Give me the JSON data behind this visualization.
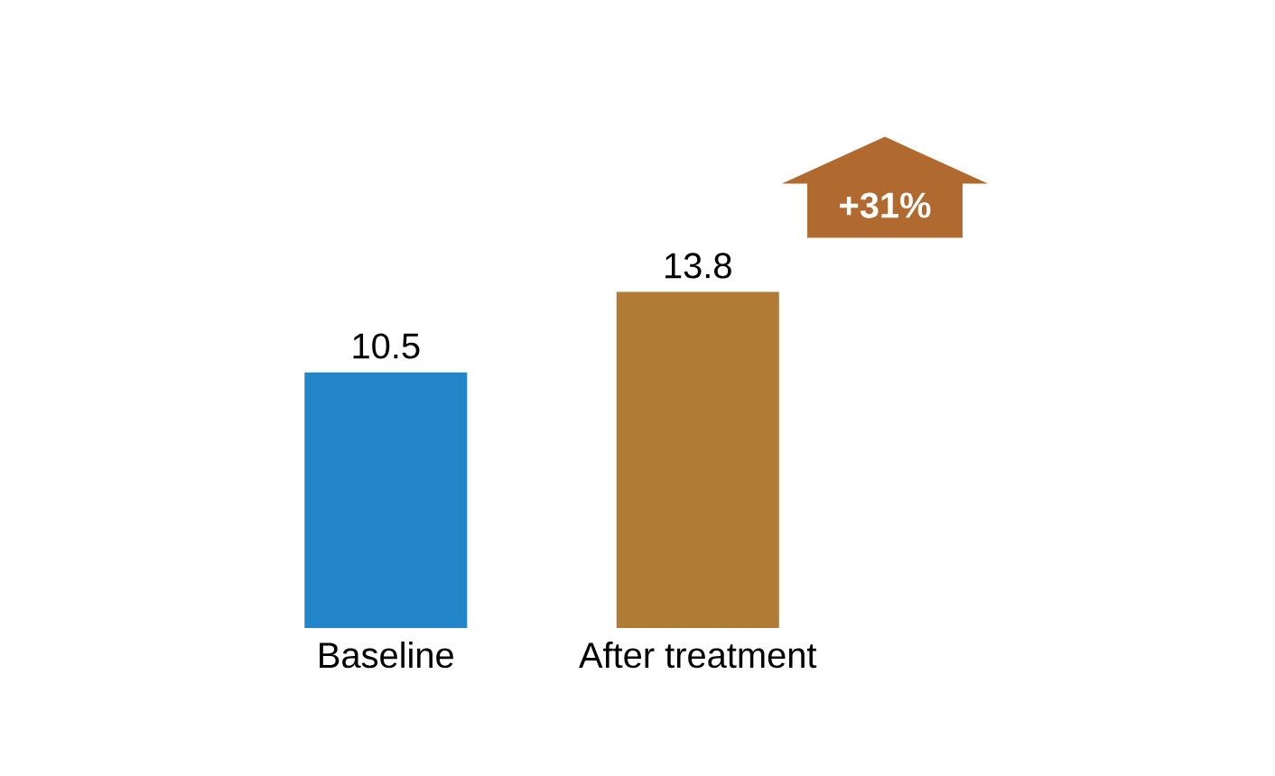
{
  "chart_data": {
    "type": "bar",
    "categories": [
      "Baseline",
      "After treatment"
    ],
    "values": [
      10.5,
      13.8
    ],
    "colors": [
      "#2185c8",
      "#b07b35"
    ],
    "data_labels": true,
    "annotations": [
      "+31%"
    ]
  }
}
